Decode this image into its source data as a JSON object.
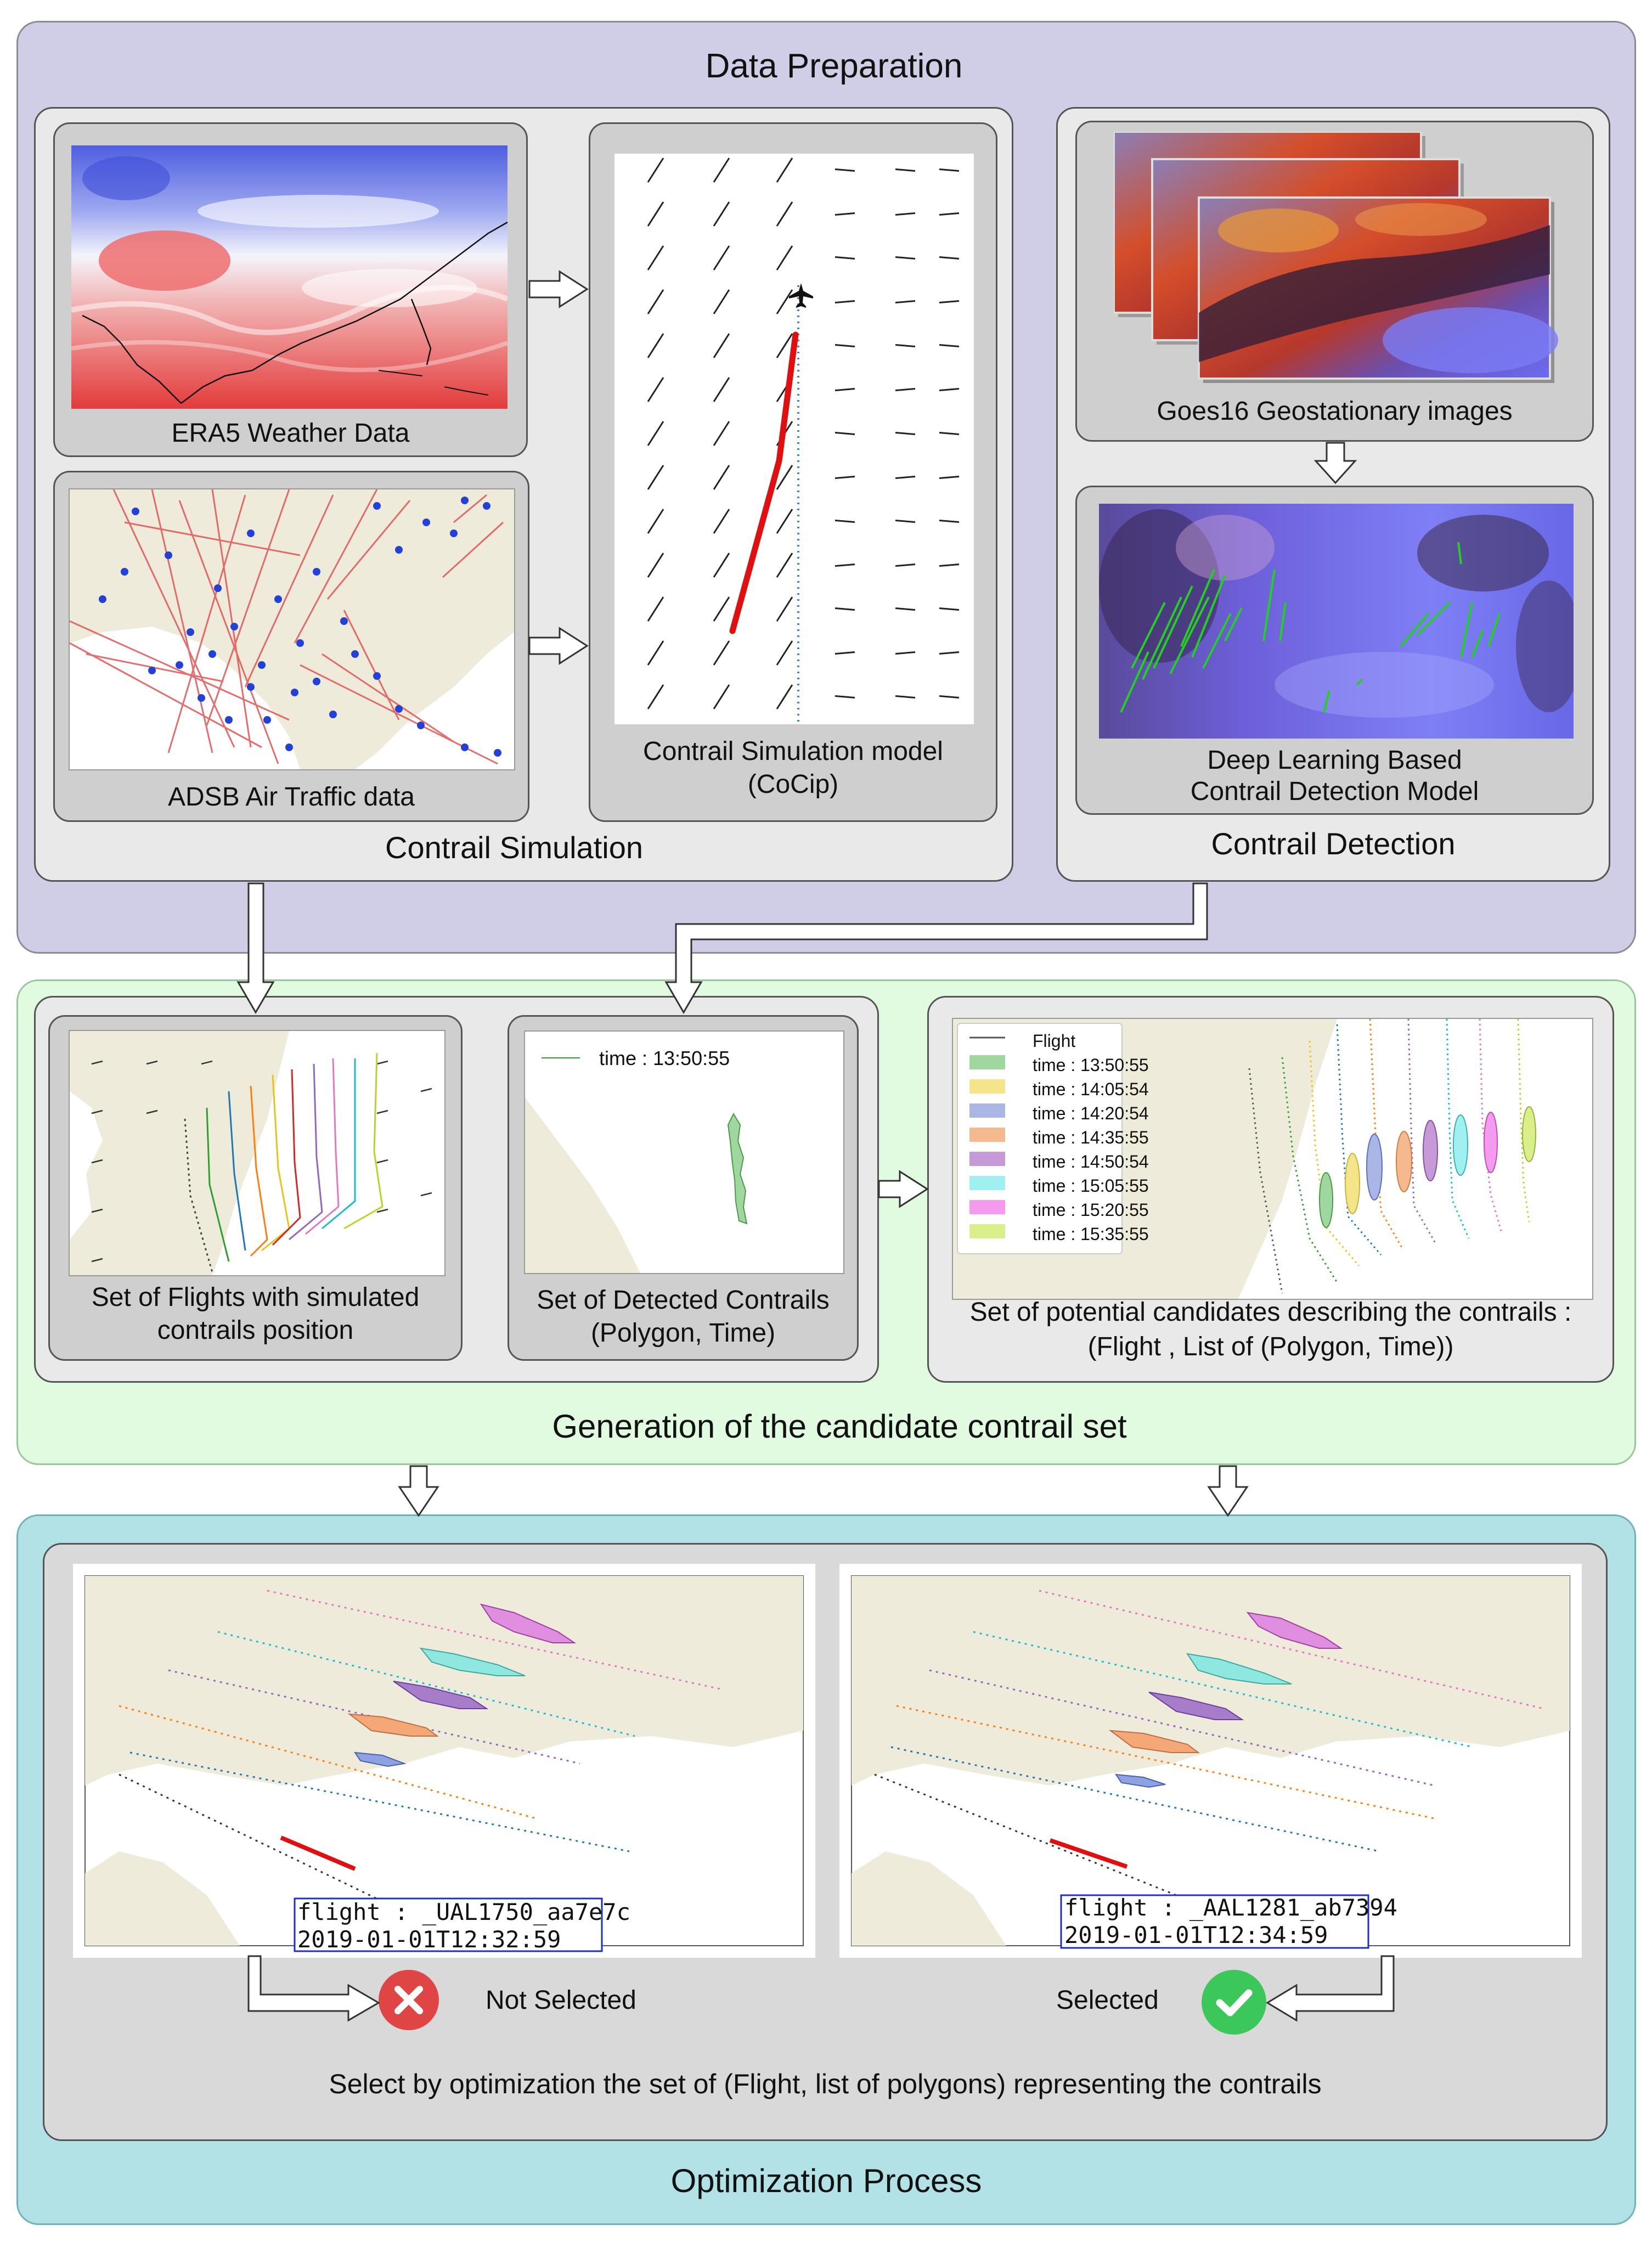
{
  "sections": {
    "data_preparation": "Data Preparation",
    "generation": "Generation of the candidate contrail set",
    "optimization": "Optimization Process"
  },
  "contrail_simulation": {
    "title": "Contrail Simulation",
    "era5_caption": "ERA5 Weather Data",
    "adsb_caption": "ADSB Air Traffic data",
    "cocip_caption_line1": "Contrail Simulation model",
    "cocip_caption_line2": "(CoCip)"
  },
  "contrail_detection": {
    "title": "Contrail Detection",
    "goes_caption": "Goes16 Geostationary images",
    "model_caption_line1": "Deep Learning Based",
    "model_caption_line2": "Contrail Detection Model"
  },
  "generation": {
    "flights_caption_line1": "Set of Flights with simulated",
    "flights_caption_line2": "contrails position",
    "detected_caption_line1": "Set of Detected Contrails",
    "detected_caption_line2": "(Polygon, Time)",
    "detected_legend": "time : 13:50:55",
    "candidates_caption_line1": "Set of potential candidates describing the contrails :",
    "candidates_caption_line2": "(Flight , List of (Polygon, Time))",
    "legend": [
      {
        "label": "Flight",
        "color": "#555555"
      },
      {
        "label": "time : 13:50:55",
        "color": "#9fd89f"
      },
      {
        "label": "time : 14:05:54",
        "color": "#f5e58a"
      },
      {
        "label": "time : 14:20:54",
        "color": "#a9b6e6"
      },
      {
        "label": "time : 14:35:55",
        "color": "#f4b98e"
      },
      {
        "label": "time : 14:50:54",
        "color": "#c69ad6"
      },
      {
        "label": "time : 15:05:55",
        "color": "#9ff0f0"
      },
      {
        "label": "time : 15:20:55",
        "color": "#f59bef"
      },
      {
        "label": "time : 15:35:55",
        "color": "#d9ef8a"
      }
    ]
  },
  "optimization": {
    "left_flight": "flight : _UAL1750_aa7e7c",
    "left_time": "2019-01-01T12:32:59",
    "right_flight": "flight : _AAL1281_ab7394",
    "right_time": "2019-01-01T12:34:59",
    "not_selected": "Not Selected",
    "selected": "Selected",
    "description": "Select by optimization the set of (Flight, list of polygons) representing the contrails"
  },
  "colors": {
    "prep_bg": "#d0cde6",
    "gen_bg": "#e0fbe0",
    "opt_bg": "#b3e2e6",
    "reject": "#e04545",
    "accept": "#3cc75a"
  }
}
